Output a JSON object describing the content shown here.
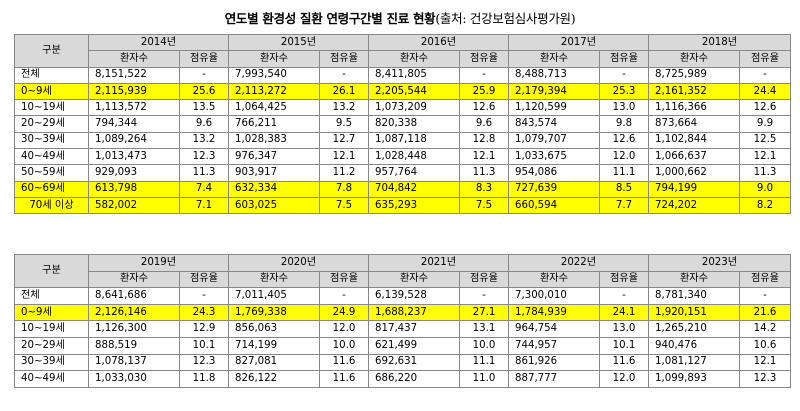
{
  "title": {
    "main": "연도별 환경성 질환 연령구간별 진료 현황",
    "source": "(출처: 건강보험심사평가원)"
  },
  "table1": {
    "group_label": "구분",
    "years": [
      "2014년",
      "2015년",
      "2016년",
      "2017년",
      "2018년"
    ],
    "sub_patients": "환자수",
    "sub_share": "점유율",
    "rows": [
      {
        "label": "전체",
        "hl": false,
        "cells": [
          [
            "8,151,522",
            "-"
          ],
          [
            "7,993,540",
            "-"
          ],
          [
            "8,411,805",
            "-"
          ],
          [
            "8,488,713",
            "-"
          ],
          [
            "8,725,989",
            "-"
          ]
        ]
      },
      {
        "label": "0~9세",
        "hl": true,
        "cells": [
          [
            "2,115,939",
            "25.6"
          ],
          [
            "2,113,272",
            "26.1"
          ],
          [
            "2,205,544",
            "25.9"
          ],
          [
            "2,179,394",
            "25.3"
          ],
          [
            "2,161,352",
            "24.4"
          ]
        ]
      },
      {
        "label": "10~19세",
        "hl": false,
        "cells": [
          [
            "1,113,572",
            "13.5"
          ],
          [
            "1,064,425",
            "13.2"
          ],
          [
            "1,073,209",
            "12.6"
          ],
          [
            "1,120,599",
            "13.0"
          ],
          [
            "1,116,366",
            "12.6"
          ]
        ]
      },
      {
        "label": "20~29세",
        "hl": false,
        "cells": [
          [
            "794,344",
            "9.6"
          ],
          [
            "766,211",
            "9.5"
          ],
          [
            "820,338",
            "9.6"
          ],
          [
            "843,574",
            "9.8"
          ],
          [
            "873,664",
            "9.9"
          ]
        ]
      },
      {
        "label": "30~39세",
        "hl": false,
        "cells": [
          [
            "1,089,264",
            "13.2"
          ],
          [
            "1,028,383",
            "12.7"
          ],
          [
            "1,087,118",
            "12.8"
          ],
          [
            "1,079,707",
            "12.6"
          ],
          [
            "1,102,844",
            "12.5"
          ]
        ]
      },
      {
        "label": "40~49세",
        "hl": false,
        "cells": [
          [
            "1,013,473",
            "12.3"
          ],
          [
            "976,347",
            "12.1"
          ],
          [
            "1,028,448",
            "12.1"
          ],
          [
            "1,033,675",
            "12.0"
          ],
          [
            "1,066,637",
            "12.1"
          ]
        ]
      },
      {
        "label": "50~59세",
        "hl": false,
        "cells": [
          [
            "929,093",
            "11.3"
          ],
          [
            "903,917",
            "11.2"
          ],
          [
            "957,764",
            "11.3"
          ],
          [
            "954,086",
            "11.1"
          ],
          [
            "1,000,662",
            "11.3"
          ]
        ]
      },
      {
        "label": "60~69세",
        "hl": true,
        "cells": [
          [
            "613,798",
            "7.4"
          ],
          [
            "632,334",
            "7.8"
          ],
          [
            "704,842",
            "8.3"
          ],
          [
            "727,639",
            "8.5"
          ],
          [
            "794,199",
            "9.0"
          ]
        ]
      },
      {
        "label": "70세 이상",
        "hl": true,
        "cells": [
          [
            "582,002",
            "7.1"
          ],
          [
            "603,025",
            "7.5"
          ],
          [
            "635,293",
            "7.5"
          ],
          [
            "660,594",
            "7.7"
          ],
          [
            "724,202",
            "8.2"
          ]
        ]
      }
    ]
  },
  "table2": {
    "group_label": "구분",
    "years": [
      "2019년",
      "2020년",
      "2021년",
      "2022년",
      "2023년"
    ],
    "sub_patients": "환자수",
    "sub_share": "점유율",
    "rows": [
      {
        "label": "전체",
        "hl": false,
        "cells": [
          [
            "8,641,686",
            "-"
          ],
          [
            "7,011,405",
            "-"
          ],
          [
            "6,139,528",
            "-"
          ],
          [
            "7,300,010",
            "-"
          ],
          [
            "8,781,340",
            "-"
          ]
        ]
      },
      {
        "label": "0~9세",
        "hl": true,
        "cells": [
          [
            "2,126,146",
            "24.3"
          ],
          [
            "1,769,338",
            "24.9"
          ],
          [
            "1,688,237",
            "27.1"
          ],
          [
            "1,784,939",
            "24.1"
          ],
          [
            "1,920,151",
            "21.6"
          ]
        ]
      },
      {
        "label": "10~19세",
        "hl": false,
        "cells": [
          [
            "1,126,300",
            "12.9"
          ],
          [
            "856,063",
            "12.0"
          ],
          [
            "817,437",
            "13.1"
          ],
          [
            "964,754",
            "13.0"
          ],
          [
            "1,265,210",
            "14.2"
          ]
        ]
      },
      {
        "label": "20~29세",
        "hl": false,
        "cells": [
          [
            "888,519",
            "10.1"
          ],
          [
            "714,199",
            "10.0"
          ],
          [
            "621,499",
            "10.0"
          ],
          [
            "744,957",
            "10.1"
          ],
          [
            "940,476",
            "10.6"
          ]
        ]
      },
      {
        "label": "30~39세",
        "hl": false,
        "cells": [
          [
            "1,078,137",
            "12.3"
          ],
          [
            "827,081",
            "11.6"
          ],
          [
            "692,631",
            "11.1"
          ],
          [
            "861,926",
            "11.6"
          ],
          [
            "1,081,127",
            "12.1"
          ]
        ]
      },
      {
        "label": "40~49세",
        "hl": false,
        "cells": [
          [
            "1,033,030",
            "11.8"
          ],
          [
            "826,122",
            "11.6"
          ],
          [
            "686,220",
            "11.0"
          ],
          [
            "887,777",
            "12.0"
          ],
          [
            "1,099,893",
            "12.3"
          ]
        ]
      }
    ]
  },
  "colors": {
    "highlight": "#ffff00",
    "header": "#d9d9d9",
    "border": "#888888"
  }
}
